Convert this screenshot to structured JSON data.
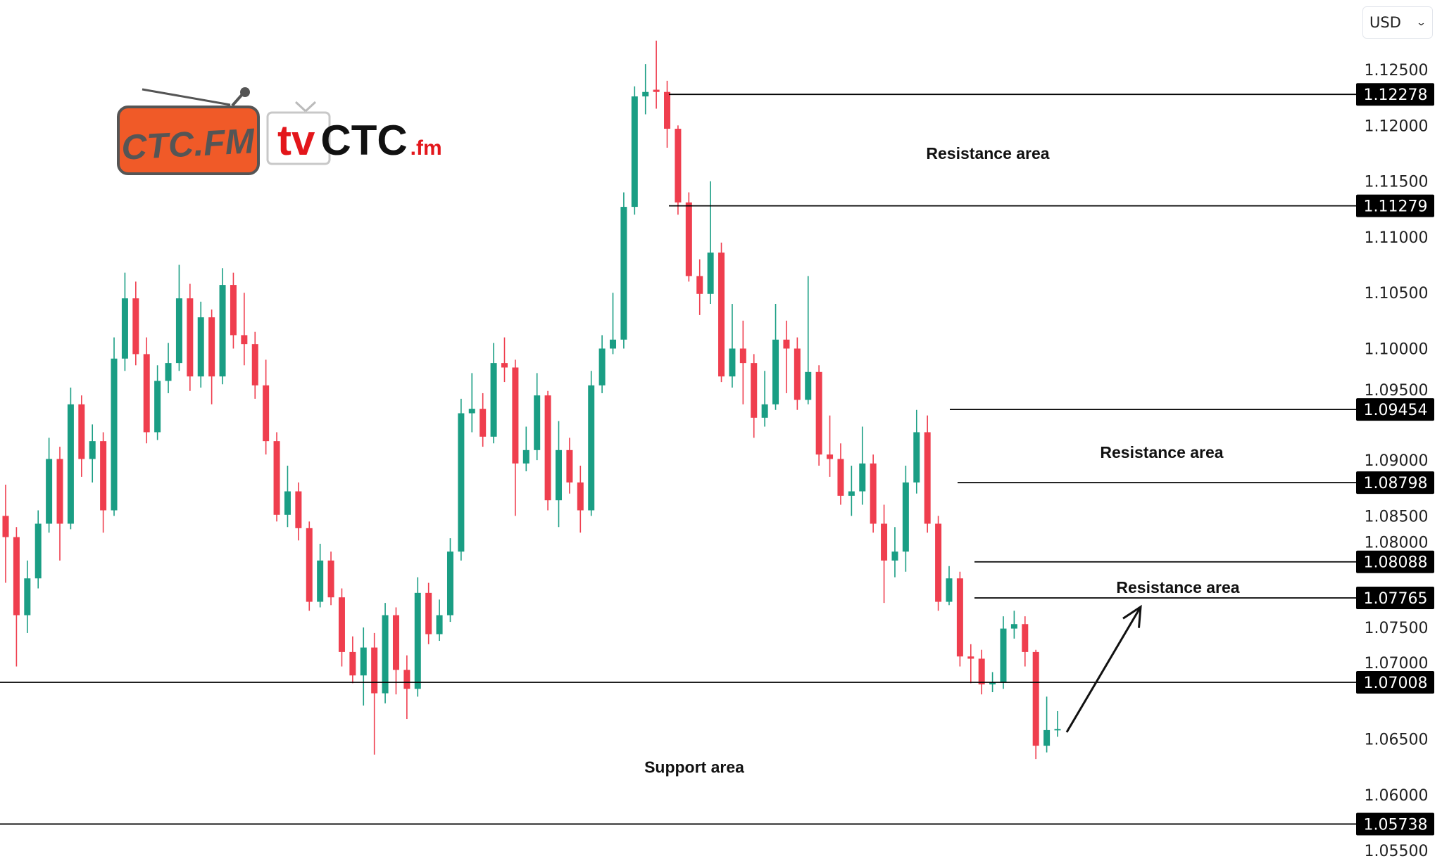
{
  "currency_select": {
    "value": "USD",
    "icon": "chevron-down-icon"
  },
  "logo": {
    "primary": "CTC.FM",
    "secondary_tv": "tv",
    "secondary_ctc": "CTC",
    "secondary_suffix": ".fm",
    "colors": {
      "orange": "#f05a28",
      "red": "#e3161b",
      "gray": "#555555"
    }
  },
  "colors": {
    "up": "#1a9e84",
    "down": "#ef3e4e",
    "level_line": "#000000",
    "level_label_bg": "#000000"
  },
  "chart_data": {
    "type": "candlestick",
    "title": "",
    "xlabel": "",
    "ylabel": "",
    "ylim": [
      1.055,
      1.128
    ],
    "grid": false,
    "y_ticks": [
      "1.12500",
      "1.12000",
      "1.11500",
      "1.11000",
      "1.10500",
      "1.10000",
      "1.09500",
      "1.09000",
      "1.08500",
      "1.08000",
      "1.07500",
      "1.07000",
      "1.06500",
      "1.06000",
      "1.05500"
    ],
    "candles": [
      [
        1.085,
        1.0878,
        1.079,
        1.0831
      ],
      [
        1.0831,
        1.084,
        1.0715,
        1.0761
      ],
      [
        1.0761,
        1.081,
        1.0745,
        1.0794
      ],
      [
        1.0794,
        1.0855,
        1.0785,
        1.0843
      ],
      [
        1.0843,
        1.092,
        1.0835,
        1.0901
      ],
      [
        1.0901,
        1.0912,
        1.081,
        1.0843
      ],
      [
        1.0843,
        1.0965,
        1.0838,
        1.095
      ],
      [
        1.095,
        1.0958,
        1.0885,
        1.0901
      ],
      [
        1.0901,
        1.0932,
        1.088,
        1.0917
      ],
      [
        1.0917,
        1.0925,
        1.0835,
        1.0855
      ],
      [
        1.0855,
        1.101,
        1.085,
        1.0991
      ],
      [
        1.0991,
        1.1068,
        1.098,
        1.1045
      ],
      [
        1.1045,
        1.106,
        1.0985,
        1.0995
      ],
      [
        1.0995,
        1.101,
        1.0915,
        1.0925
      ],
      [
        1.0925,
        1.0985,
        1.0918,
        1.0971
      ],
      [
        1.0971,
        1.1005,
        1.096,
        1.0987
      ],
      [
        1.0987,
        1.1075,
        1.098,
        1.1045
      ],
      [
        1.1045,
        1.1058,
        1.0962,
        1.0975
      ],
      [
        1.0975,
        1.1042,
        1.0965,
        1.1028
      ],
      [
        1.1028,
        1.1035,
        1.095,
        1.0975
      ],
      [
        1.0975,
        1.1072,
        1.0968,
        1.1057
      ],
      [
        1.1057,
        1.1068,
        1.1,
        1.1012
      ],
      [
        1.1012,
        1.105,
        1.0985,
        1.1004
      ],
      [
        1.1004,
        1.1015,
        1.0955,
        1.0967
      ],
      [
        1.0967,
        1.099,
        1.0905,
        1.0917
      ],
      [
        1.0917,
        1.0925,
        1.0845,
        1.0851
      ],
      [
        1.0851,
        1.0895,
        1.084,
        1.0872
      ],
      [
        1.0872,
        1.088,
        1.0828,
        1.0839
      ],
      [
        1.0839,
        1.0845,
        1.0765,
        1.0773
      ],
      [
        1.0773,
        1.0825,
        1.0768,
        1.081
      ],
      [
        1.081,
        1.0818,
        1.077,
        1.0777
      ],
      [
        1.0777,
        1.0785,
        1.0715,
        1.0728
      ],
      [
        1.0728,
        1.0742,
        1.07,
        1.0707
      ],
      [
        1.0707,
        1.075,
        1.068,
        1.0732
      ],
      [
        1.0732,
        1.0745,
        1.0636,
        1.0691
      ],
      [
        1.0691,
        1.0772,
        1.0682,
        1.0761
      ],
      [
        1.0761,
        1.0768,
        1.069,
        1.0712
      ],
      [
        1.0712,
        1.0725,
        1.0668,
        1.0695
      ],
      [
        1.0695,
        1.0795,
        1.0688,
        1.0781
      ],
      [
        1.0781,
        1.079,
        1.0735,
        1.0744
      ],
      [
        1.0744,
        1.0775,
        1.0738,
        1.0761
      ],
      [
        1.0761,
        1.083,
        1.0755,
        1.0818
      ],
      [
        1.0818,
        1.0955,
        1.081,
        1.0942
      ],
      [
        1.0942,
        1.0978,
        1.0925,
        1.0946
      ],
      [
        1.0946,
        1.096,
        1.0912,
        1.0921
      ],
      [
        1.0921,
        1.1005,
        1.0915,
        1.0987
      ],
      [
        1.0987,
        1.101,
        1.097,
        1.0983
      ],
      [
        1.0983,
        1.099,
        1.085,
        1.0897
      ],
      [
        1.0897,
        1.093,
        1.089,
        1.0909
      ],
      [
        1.0909,
        1.0978,
        1.09,
        1.0958
      ],
      [
        1.0958,
        1.0962,
        1.0855,
        1.0864
      ],
      [
        1.0864,
        1.0935,
        1.084,
        1.0909
      ],
      [
        1.0909,
        1.092,
        1.087,
        1.088
      ],
      [
        1.088,
        1.0895,
        1.0835,
        1.0855
      ],
      [
        1.0855,
        1.098,
        1.085,
        1.0967
      ],
      [
        1.0967,
        1.1012,
        1.096,
        1.1
      ],
      [
        1.1,
        1.105,
        1.0995,
        1.1008
      ],
      [
        1.1008,
        1.114,
        1.1,
        1.1127
      ],
      [
        1.1127,
        1.1235,
        1.112,
        1.1226
      ],
      [
        1.1226,
        1.1255,
        1.121,
        1.123
      ],
      [
        1.1232,
        1.1276,
        1.1215,
        1.123
      ],
      [
        1.123,
        1.124,
        1.118,
        1.1197
      ],
      [
        1.1197,
        1.12,
        1.112,
        1.1131
      ],
      [
        1.1131,
        1.114,
        1.106,
        1.1065
      ],
      [
        1.1065,
        1.108,
        1.103,
        1.1049
      ],
      [
        1.1049,
        1.115,
        1.104,
        1.1086
      ],
      [
        1.1086,
        1.1095,
        1.097,
        1.0975
      ],
      [
        1.0975,
        1.104,
        1.0965,
        1.1
      ],
      [
        1.1,
        1.1025,
        1.095,
        1.0987
      ],
      [
        1.0987,
        1.0995,
        1.092,
        1.0938
      ],
      [
        1.0938,
        1.098,
        1.093,
        1.095
      ],
      [
        1.095,
        1.104,
        1.0945,
        1.1008
      ],
      [
        1.1008,
        1.1025,
        1.096,
        1.1
      ],
      [
        1.1,
        1.101,
        1.0945,
        1.0954
      ],
      [
        1.0954,
        1.1065,
        1.095,
        1.0979
      ],
      [
        1.0979,
        1.0985,
        1.0895,
        1.0905
      ],
      [
        1.0905,
        1.094,
        1.0885,
        1.0901
      ],
      [
        1.0901,
        1.0915,
        1.086,
        1.0868
      ],
      [
        1.0868,
        1.0895,
        1.085,
        1.0872
      ],
      [
        1.0872,
        1.093,
        1.086,
        1.0897
      ],
      [
        1.0897,
        1.0905,
        1.0835,
        1.0843
      ],
      [
        1.0843,
        1.086,
        1.0772,
        1.081
      ],
      [
        1.081,
        1.084,
        1.0795,
        1.0818
      ],
      [
        1.0818,
        1.0895,
        1.08,
        1.088
      ],
      [
        1.088,
        1.0945,
        1.087,
        1.0925
      ],
      [
        1.0925,
        1.094,
        1.0835,
        1.0843
      ],
      [
        1.0843,
        1.085,
        1.0765,
        1.0773
      ],
      [
        1.0773,
        1.0805,
        1.077,
        1.0794
      ],
      [
        1.0794,
        1.08,
        1.0715,
        1.0724
      ],
      [
        1.0724,
        1.0735,
        1.07,
        1.0722
      ],
      [
        1.0722,
        1.073,
        1.069,
        1.0699
      ],
      [
        1.0699,
        1.071,
        1.0692,
        1.0701
      ],
      [
        1.0701,
        1.076,
        1.0695,
        1.0749
      ],
      [
        1.0749,
        1.0765,
        1.074,
        1.0753
      ],
      [
        1.0753,
        1.076,
        1.0715,
        1.0728
      ],
      [
        1.0728,
        1.073,
        1.0632,
        1.0644
      ],
      [
        1.0644,
        1.0688,
        1.0638,
        1.0658
      ],
      [
        1.0658,
        1.0675,
        1.0652,
        1.0659
      ]
    ],
    "levels": [
      {
        "value": 1.12278,
        "label": "1.12278"
      },
      {
        "value": 1.11279,
        "label": "1.11279"
      },
      {
        "value": 1.09454,
        "label": "1.09454"
      },
      {
        "value": 1.08798,
        "label": "1.08798"
      },
      {
        "value": 1.08088,
        "label": "1.08088"
      },
      {
        "value": 1.07765,
        "label": "1.07765"
      },
      {
        "value": 1.07008,
        "label": "1.07008"
      },
      {
        "value": 1.05738,
        "label": "1.05738"
      }
    ],
    "annotations": [
      {
        "text": "Resistance area",
        "price": 1.1175
      },
      {
        "text": "Resistance area",
        "price": 1.0907
      },
      {
        "text": "Resistance area",
        "price": 1.0786
      },
      {
        "text": "Support area",
        "price": 1.0625
      }
    ],
    "arrow": {
      "from_price": 1.0658,
      "to_price": 1.0771,
      "direction": "up"
    }
  }
}
